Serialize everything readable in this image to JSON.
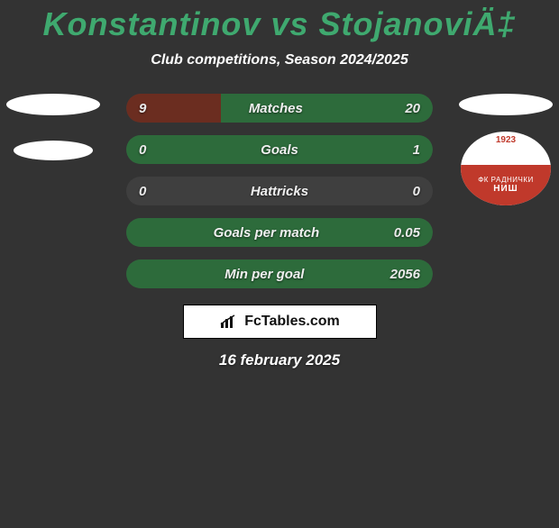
{
  "title": {
    "text": "Konstantinov vs StojanoviÄ‡",
    "fontsize": 36,
    "color": "#3fa96f"
  },
  "subtitle": {
    "text": "Club competitions, Season 2024/2025",
    "fontsize": 16,
    "color": "#ffffff"
  },
  "left_badges": {
    "player_placeholder": {
      "width": 104,
      "height": 24,
      "bg": "#ffffff"
    },
    "club_placeholder": {
      "width": 88,
      "height": 22,
      "bg": "#ffffff"
    }
  },
  "right_badges": {
    "player_placeholder": {
      "width": 104,
      "height": 24,
      "bg": "#ffffff"
    },
    "club": {
      "year": "1923",
      "line1": "ФК РАДНИЧКИ",
      "line2": "НИШ",
      "bg": "#ffffff",
      "accent": "#c0392b",
      "text": "#ffffff"
    }
  },
  "bars": {
    "track_color": "#3f3f3f",
    "left_fill_color": "#6b2d20",
    "right_fill_color": "#2d6b3b",
    "label_color": "#f0f0f0",
    "value_color": "#eaeaea",
    "fontsize": 15,
    "rows": [
      {
        "label": "Matches",
        "left": "9",
        "right": "20",
        "left_pct": 31,
        "right_pct": 69
      },
      {
        "label": "Goals",
        "left": "0",
        "right": "1",
        "left_pct": 0,
        "right_pct": 100
      },
      {
        "label": "Hattricks",
        "left": "0",
        "right": "0",
        "left_pct": 0,
        "right_pct": 0
      },
      {
        "label": "Goals per match",
        "left": "",
        "right": "0.05",
        "left_pct": 0,
        "right_pct": 100
      },
      {
        "label": "Min per goal",
        "left": "",
        "right": "2056",
        "left_pct": 0,
        "right_pct": 100
      }
    ]
  },
  "footer": {
    "brand": "FcTables.com",
    "brand_color": "#111111",
    "bg": "#ffffff",
    "date": "16 february 2025"
  }
}
